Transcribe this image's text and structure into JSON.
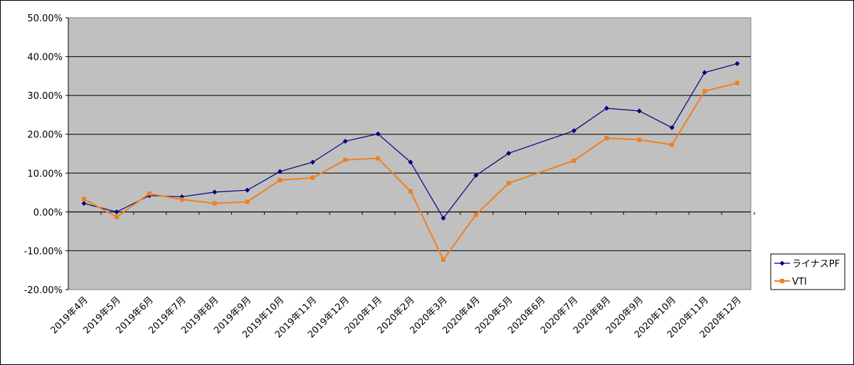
{
  "chart_data": {
    "type": "line",
    "categories": [
      "2019年4月",
      "2019年5月",
      "2019年6月",
      "2019年7月",
      "2019年8月",
      "2019年9月",
      "2019年10月",
      "2019年11月",
      "2019年12月",
      "2020年1月",
      "2020年2月",
      "2020年3月",
      "2020年4月",
      "2020年5月",
      "2020年6月",
      "2020年7月",
      "2020年8月",
      "2020年9月",
      "2020年10月",
      "2020年11月",
      "2020年12月"
    ],
    "series": [
      {
        "name": "ライナスPF",
        "color": "#000080",
        "marker": "diamond",
        "values": [
          2.2,
          0.0,
          4.2,
          3.9,
          5.1,
          5.6,
          10.4,
          12.8,
          18.2,
          20.1,
          12.8,
          -1.6,
          9.4,
          15.1,
          null,
          20.9,
          26.7,
          26.0,
          21.7,
          35.9,
          38.2
        ]
      },
      {
        "name": "VTI",
        "color": "#f08020",
        "marker": "square",
        "values": [
          3.3,
          -1.3,
          4.7,
          3.2,
          2.2,
          2.6,
          8.2,
          8.8,
          13.4,
          13.8,
          5.3,
          -12.3,
          -0.7,
          7.4,
          null,
          13.2,
          19.0,
          18.6,
          17.3,
          31.1,
          33.2
        ]
      }
    ],
    "yticks": [
      "50.00%",
      "40.00%",
      "30.00%",
      "20.00%",
      "10.00%",
      "0.00%",
      "-10.00%",
      "-20.00%"
    ],
    "ylim": [
      -20,
      50
    ],
    "grid": true,
    "plot_background": "#c0c0c0",
    "legend_position": "right"
  }
}
